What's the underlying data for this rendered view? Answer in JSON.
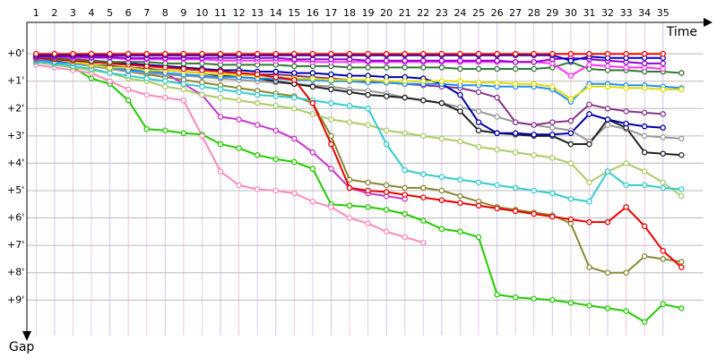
{
  "chart_data": {
    "type": "line",
    "xlabel": "Time",
    "ylabel": "Gap",
    "x": [
      1,
      2,
      3,
      4,
      5,
      6,
      7,
      8,
      9,
      10,
      11,
      12,
      13,
      14,
      15,
      16,
      17,
      18,
      19,
      20,
      21,
      22,
      23,
      24,
      25,
      26,
      27,
      28,
      29,
      30,
      31,
      32,
      33,
      34,
      35,
      36
    ],
    "xlim": [
      0.5,
      37.2
    ],
    "xticks": [
      1,
      2,
      3,
      4,
      5,
      6,
      7,
      8,
      9,
      10,
      11,
      12,
      13,
      14,
      15,
      16,
      17,
      18,
      19,
      20,
      21,
      22,
      23,
      24,
      25,
      26,
      27,
      28,
      29,
      30,
      31,
      32,
      33,
      34,
      35
    ],
    "ylim": [
      -1.15,
      10.3
    ],
    "y_reversed": true,
    "yticks": [
      {
        "value": 0,
        "label": "+0'"
      },
      {
        "value": 1,
        "label": "+1'"
      },
      {
        "value": 2,
        "label": "+2'"
      },
      {
        "value": 3,
        "label": "+3'"
      },
      {
        "value": 4,
        "label": "+4'"
      },
      {
        "value": 5,
        "label": "+5'"
      },
      {
        "value": 6,
        "label": "+6'"
      },
      {
        "value": 7,
        "label": "+7'"
      },
      {
        "value": 8,
        "label": "+8'"
      },
      {
        "value": 9,
        "label": "+9'"
      }
    ],
    "grid": true,
    "series": [
      {
        "color": "#22cc00",
        "values": [
          0.3,
          0.4,
          0.5,
          0.9,
          1.1,
          1.7,
          2.75,
          2.8,
          2.9,
          2.95,
          3.3,
          3.45,
          3.7,
          3.85,
          3.95,
          4.2,
          5.5,
          5.55,
          5.6,
          5.7,
          5.85,
          6.1,
          6.4,
          6.5,
          6.7,
          8.8,
          8.9,
          8.95,
          9.0,
          9.1,
          9.2,
          9.3,
          9.4,
          9.8,
          9.15,
          9.3
        ]
      },
      {
        "color": "#ff88bb",
        "values": [
          0.4,
          0.5,
          0.6,
          0.7,
          1.0,
          1.3,
          1.5,
          1.6,
          1.7,
          3.0,
          4.3,
          4.8,
          4.95,
          5.0,
          5.1,
          5.4,
          5.6,
          6.0,
          6.2,
          6.5,
          6.7,
          6.9,
          null,
          null,
          null,
          null,
          null,
          null,
          null,
          null,
          null,
          null,
          null,
          null,
          null,
          null
        ]
      },
      {
        "color": "#888833",
        "values": [
          0.25,
          0.3,
          0.35,
          0.45,
          0.55,
          0.65,
          0.75,
          0.85,
          0.95,
          1.05,
          1.15,
          1.25,
          1.35,
          1.45,
          1.55,
          1.8,
          3.0,
          4.6,
          4.7,
          4.8,
          4.9,
          4.9,
          5.0,
          5.2,
          5.4,
          5.6,
          5.7,
          5.8,
          5.9,
          6.2,
          7.8,
          8.0,
          8.0,
          7.4,
          7.5,
          7.6
        ]
      },
      {
        "color": "#cc33cc",
        "values": [
          0.2,
          0.25,
          0.3,
          0.4,
          0.5,
          0.55,
          0.6,
          0.7,
          1.1,
          1.5,
          2.3,
          2.4,
          2.6,
          2.8,
          3.1,
          3.6,
          4.2,
          4.9,
          5.1,
          5.2,
          5.3,
          null,
          null,
          null,
          null,
          null,
          null,
          null,
          null,
          null,
          null,
          null,
          null,
          null,
          null,
          null
        ]
      },
      {
        "color": "#aacc66",
        "values": [
          0.3,
          0.4,
          0.5,
          0.6,
          0.7,
          0.9,
          1.0,
          1.2,
          1.3,
          1.5,
          1.6,
          1.7,
          1.8,
          1.9,
          2.0,
          2.2,
          2.4,
          2.5,
          2.6,
          2.8,
          2.9,
          3.0,
          3.1,
          3.2,
          3.4,
          3.5,
          3.6,
          3.7,
          3.8,
          4.0,
          4.7,
          4.3,
          4.0,
          4.3,
          4.7,
          5.2
        ]
      },
      {
        "color": "#33cccc",
        "values": [
          0.3,
          0.35,
          0.45,
          0.55,
          0.7,
          0.8,
          0.9,
          1.0,
          1.1,
          1.2,
          1.3,
          1.4,
          1.5,
          1.55,
          1.6,
          1.7,
          1.8,
          1.9,
          2.0,
          3.3,
          4.25,
          4.4,
          4.5,
          4.6,
          4.7,
          4.8,
          4.9,
          5.0,
          5.1,
          5.3,
          5.4,
          4.3,
          4.8,
          4.8,
          4.9,
          4.95
        ]
      },
      {
        "color": "#999999",
        "values": [
          0.25,
          0.3,
          0.35,
          0.45,
          0.55,
          0.65,
          0.7,
          0.75,
          0.8,
          0.85,
          0.9,
          0.95,
          1.0,
          1.05,
          1.1,
          1.15,
          1.2,
          1.3,
          1.35,
          1.45,
          1.6,
          1.7,
          1.8,
          1.95,
          2.1,
          2.3,
          2.5,
          2.6,
          2.7,
          2.8,
          3.2,
          2.6,
          2.75,
          3.0,
          3.05,
          3.1
        ]
      },
      {
        "color": "#222222",
        "values": [
          0.2,
          0.25,
          0.3,
          0.4,
          0.45,
          0.5,
          0.55,
          0.6,
          0.65,
          0.7,
          0.8,
          0.85,
          0.9,
          1.0,
          1.1,
          1.2,
          1.3,
          1.4,
          1.5,
          1.55,
          1.6,
          1.7,
          1.8,
          2.1,
          2.8,
          2.9,
          2.95,
          3.0,
          3.0,
          3.3,
          3.3,
          2.4,
          2.7,
          3.6,
          3.65,
          3.7
        ]
      },
      {
        "color": "#883388",
        "values": [
          0.15,
          0.2,
          0.25,
          0.3,
          0.35,
          0.4,
          0.45,
          0.5,
          0.55,
          0.6,
          0.65,
          0.7,
          0.75,
          0.75,
          0.8,
          0.85,
          0.9,
          0.95,
          1.0,
          1.05,
          1.1,
          1.15,
          1.2,
          1.25,
          1.4,
          1.6,
          2.5,
          2.6,
          2.5,
          2.45,
          1.85,
          2.0,
          2.1,
          2.15,
          2.2,
          null
        ]
      },
      {
        "color": "#0000aa",
        "values": [
          0.1,
          0.15,
          0.2,
          0.25,
          0.3,
          0.35,
          0.4,
          0.45,
          0.5,
          0.55,
          0.6,
          0.6,
          0.65,
          0.65,
          0.7,
          0.7,
          0.75,
          0.8,
          0.8,
          0.85,
          0.85,
          0.9,
          1.1,
          1.5,
          2.5,
          2.9,
          2.9,
          2.95,
          2.95,
          2.9,
          2.2,
          2.4,
          2.55,
          2.65,
          2.7,
          null
        ]
      },
      {
        "color": "#1e90ff",
        "values": [
          0.2,
          0.3,
          0.35,
          0.4,
          0.5,
          0.6,
          0.65,
          0.7,
          0.75,
          0.8,
          0.85,
          0.85,
          0.9,
          0.9,
          0.95,
          0.95,
          1.0,
          1.0,
          1.05,
          1.05,
          1.1,
          1.1,
          1.1,
          1.15,
          1.15,
          1.2,
          1.2,
          1.2,
          1.3,
          1.75,
          1.1,
          1.1,
          1.15,
          1.15,
          1.2,
          1.25
        ]
      },
      {
        "color": "#dddd00",
        "values": [
          0.15,
          0.2,
          0.3,
          0.4,
          0.5,
          0.5,
          0.6,
          0.6,
          0.65,
          0.7,
          0.75,
          0.75,
          0.8,
          0.85,
          0.9,
          0.9,
          0.95,
          0.95,
          0.95,
          1.0,
          1.0,
          1.0,
          1.0,
          1.0,
          1.05,
          1.05,
          1.1,
          1.1,
          1.2,
          1.65,
          1.2,
          1.2,
          1.25,
          1.25,
          1.3,
          1.3
        ]
      },
      {
        "color": "#ee0000",
        "values": [
          0.15,
          0.2,
          0.25,
          0.3,
          0.35,
          0.4,
          0.45,
          0.5,
          0.55,
          0.6,
          0.65,
          0.7,
          0.75,
          0.85,
          0.95,
          1.8,
          3.3,
          4.9,
          5.0,
          5.05,
          5.15,
          5.25,
          5.35,
          5.45,
          5.55,
          5.65,
          5.75,
          5.85,
          5.95,
          6.05,
          6.15,
          6.15,
          5.6,
          6.3,
          7.2,
          7.8
        ]
      },
      {
        "color": "#337733",
        "values": [
          0.1,
          0.15,
          0.2,
          0.25,
          0.3,
          0.3,
          0.3,
          0.35,
          0.35,
          0.35,
          0.4,
          0.4,
          0.4,
          0.4,
          0.45,
          0.45,
          0.45,
          0.5,
          0.5,
          0.5,
          0.5,
          0.5,
          0.5,
          0.55,
          0.55,
          0.55,
          0.55,
          0.55,
          0.5,
          0.3,
          0.55,
          0.6,
          0.6,
          0.65,
          0.65,
          0.7
        ]
      },
      {
        "color": "#ff33ff",
        "values": [
          0.1,
          0.1,
          0.15,
          0.15,
          0.15,
          0.2,
          0.2,
          0.2,
          0.2,
          0.2,
          0.25,
          0.25,
          0.25,
          0.25,
          0.25,
          0.3,
          0.3,
          0.3,
          0.3,
          0.3,
          0.3,
          0.3,
          0.3,
          0.3,
          0.3,
          0.3,
          0.3,
          0.3,
          0.35,
          0.8,
          0.4,
          0.45,
          0.5,
          0.5,
          0.55,
          null
        ]
      },
      {
        "color": "#9900cc",
        "values": [
          0.1,
          0.1,
          0.1,
          0.12,
          0.12,
          0.15,
          0.15,
          0.15,
          0.15,
          0.15,
          0.15,
          0.15,
          0.15,
          0.15,
          0.2,
          0.2,
          0.2,
          0.2,
          0.25,
          0.25,
          0.25,
          0.25,
          0.25,
          0.25,
          0.25,
          0.25,
          0.3,
          0.3,
          0.2,
          0.15,
          0.2,
          0.25,
          0.3,
          0.35,
          0.35,
          null
        ]
      },
      {
        "color": "#0000cc",
        "values": [
          0.05,
          0.05,
          0.05,
          0.05,
          0.05,
          0.05,
          0.05,
          0.05,
          0.05,
          0.05,
          0.05,
          0.05,
          0.05,
          0.05,
          0.05,
          0.05,
          0.05,
          0.05,
          0.05,
          0.05,
          0.05,
          0.05,
          0.05,
          0.05,
          0.05,
          0.05,
          0.05,
          0.05,
          0.05,
          0.25,
          0.1,
          0.15,
          0.15,
          0.15,
          0.15,
          null
        ]
      },
      {
        "color": "#ff0000",
        "values": [
          0,
          0,
          0,
          0,
          0,
          0,
          0,
          0,
          0,
          0,
          0,
          0,
          0,
          0,
          0,
          0,
          0,
          0,
          0,
          0,
          0,
          0,
          0,
          0,
          0,
          0,
          0,
          0,
          0,
          0,
          0,
          0,
          0,
          0,
          0,
          null
        ]
      }
    ]
  }
}
